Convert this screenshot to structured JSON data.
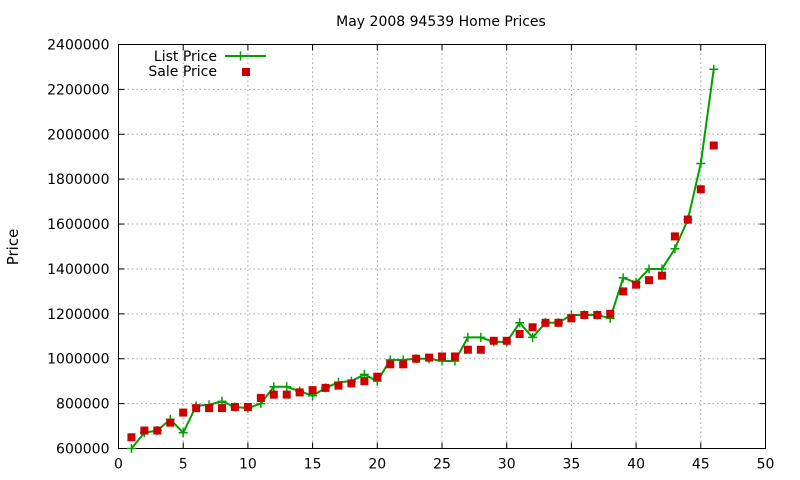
{
  "chart_data": {
    "type": "line",
    "title": "May 2008 94539 Home Prices",
    "xlabel": "",
    "ylabel": "Price",
    "xlim": [
      0,
      50
    ],
    "ylim": [
      600000,
      2400000
    ],
    "xticks": [
      0,
      5,
      10,
      15,
      20,
      25,
      30,
      35,
      40,
      45,
      50
    ],
    "yticks": [
      600000,
      800000,
      1000000,
      1200000,
      1400000,
      1600000,
      1800000,
      2000000,
      2200000,
      2400000
    ],
    "grid": true,
    "legend_position": "top-left",
    "series": [
      {
        "name": "List Price",
        "style": "line-plus",
        "color": "#00a000",
        "x": [
          1,
          2,
          3,
          4,
          5,
          6,
          7,
          8,
          9,
          10,
          11,
          12,
          13,
          14,
          15,
          16,
          17,
          18,
          19,
          20,
          21,
          22,
          23,
          24,
          25,
          26,
          27,
          28,
          29,
          30,
          31,
          32,
          33,
          34,
          35,
          36,
          37,
          38,
          39,
          40,
          41,
          42,
          43,
          44,
          45,
          46
        ],
        "y": [
          600000,
          670000,
          680000,
          730000,
          670000,
          790000,
          795000,
          810000,
          785000,
          780000,
          800000,
          875000,
          875000,
          855000,
          835000,
          870000,
          895000,
          900000,
          930000,
          900000,
          995000,
          995000,
          1000000,
          1000000,
          990000,
          990000,
          1095000,
          1095000,
          1075000,
          1075000,
          1160000,
          1095000,
          1160000,
          1160000,
          1195000,
          1195000,
          1195000,
          1180000,
          1360000,
          1340000,
          1400000,
          1400000,
          1490000,
          1620000,
          1870000,
          2290000
        ]
      },
      {
        "name": "Sale Price",
        "style": "square-markers",
        "color": "#cc0000",
        "x": [
          1,
          2,
          3,
          4,
          5,
          6,
          7,
          8,
          9,
          10,
          11,
          12,
          13,
          14,
          15,
          16,
          17,
          18,
          19,
          20,
          21,
          22,
          23,
          24,
          25,
          26,
          27,
          28,
          29,
          30,
          31,
          32,
          33,
          34,
          35,
          36,
          37,
          38,
          39,
          40,
          41,
          42,
          43,
          44,
          45,
          46
        ],
        "y": [
          650000,
          680000,
          680000,
          715000,
          760000,
          780000,
          780000,
          780000,
          785000,
          785000,
          825000,
          840000,
          840000,
          850000,
          860000,
          870000,
          880000,
          890000,
          900000,
          920000,
          975000,
          975000,
          1000000,
          1005000,
          1010000,
          1010000,
          1040000,
          1040000,
          1080000,
          1080000,
          1110000,
          1140000,
          1160000,
          1160000,
          1180000,
          1195000,
          1195000,
          1200000,
          1300000,
          1330000,
          1350000,
          1370000,
          1545000,
          1620000,
          1755000,
          1950000
        ]
      }
    ]
  }
}
